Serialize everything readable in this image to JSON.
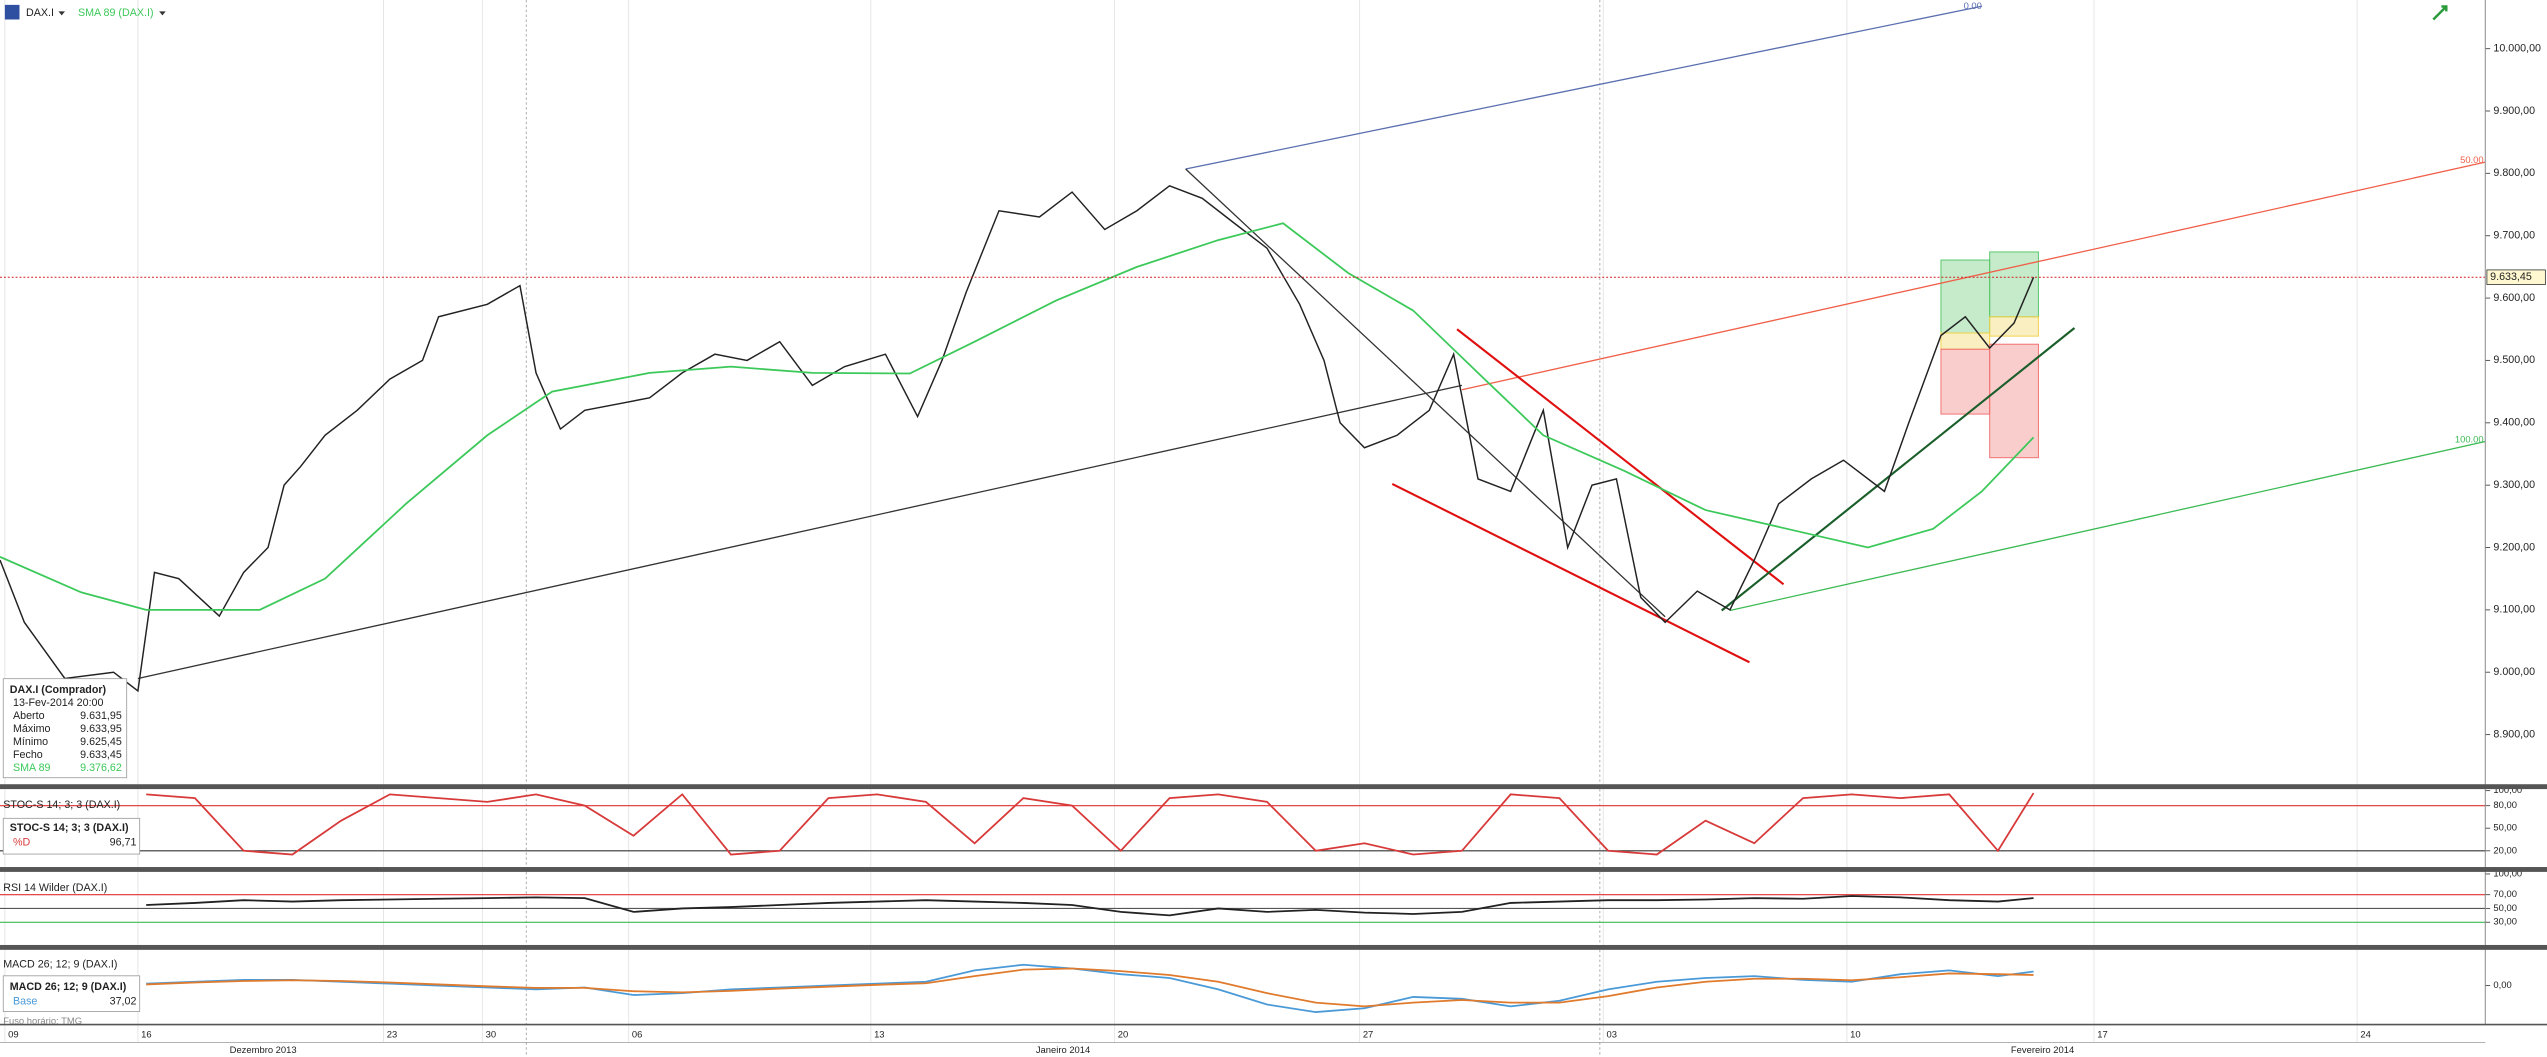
{
  "chart_data": [
    {
      "type": "line",
      "title": "DAX.I",
      "xlim": [
        0,
        51
      ],
      "xticks": [
        {
          "value": 0.1,
          "label": "09"
        },
        {
          "value": 2.83,
          "label": "16"
        },
        {
          "value": 7.87,
          "label": "23"
        },
        {
          "value": 9.9,
          "label": "30"
        },
        {
          "value": 12.9,
          "label": "06"
        },
        {
          "value": 17.87,
          "label": "13"
        },
        {
          "value": 22.87,
          "label": "20"
        },
        {
          "value": 27.9,
          "label": "27"
        },
        {
          "value": 32.9,
          "label": "03"
        },
        {
          "value": 37.9,
          "label": "10"
        },
        {
          "value": 42.97,
          "label": "17"
        },
        {
          "value": 48.37,
          "label": "24"
        }
      ],
      "x_groups": [
        {
          "label": "Dezembro 2013",
          "start": 0,
          "end": 10.8
        },
        {
          "label": "Janeiro 2014",
          "start": 10.8,
          "end": 32.83
        },
        {
          "label": "Fevereiro 2014",
          "start": 32.83,
          "end": 51
        }
      ],
      "ylim": [
        8823,
        10078
      ],
      "yticks": [
        {
          "value": 8900,
          "label": "8.900,00"
        },
        {
          "value": 9000,
          "label": "9.000,00"
        },
        {
          "value": 9100,
          "label": "9.100,00"
        },
        {
          "value": 9200,
          "label": "9.200,00"
        },
        {
          "value": 9300,
          "label": "9.300,00"
        },
        {
          "value": 9400,
          "label": "9.400,00"
        },
        {
          "value": 9500,
          "label": "9.500,00"
        },
        {
          "value": 9600,
          "label": "9.600,00"
        },
        {
          "value": 9700,
          "label": "9.700,00"
        },
        {
          "value": 9800,
          "label": "9.800,00"
        },
        {
          "value": 9900,
          "label": "9.900,00"
        },
        {
          "value": 10000,
          "label": "10.000,00"
        }
      ],
      "grid": true,
      "last_price_label": "9.633,45",
      "series": [
        {
          "name": "DAX.I",
          "color": "#222222",
          "x": [
            0,
            0.5,
            1.33,
            2.33,
            2.83,
            3.17,
            3.67,
            4.5,
            5,
            5.5,
            5.83,
            6.17,
            6.67,
            7.33,
            8,
            8.67,
            9,
            10,
            10.67,
            11,
            11.5,
            12,
            12.67,
            13.33,
            14,
            14.67,
            15.33,
            16,
            16.67,
            17.33,
            18.17,
            18.83,
            19.33,
            19.83,
            20.5,
            21.33,
            22,
            22.67,
            23.33,
            24,
            24.67,
            25.33,
            26,
            26.67,
            27.17,
            27.5,
            28,
            28.67,
            29.33,
            29.83,
            30.33,
            31,
            31.67,
            32.17,
            32.67,
            33.17,
            33.67,
            34.17,
            34.83,
            35.5,
            36,
            36.5,
            37.17,
            37.83,
            38.67,
            39.17,
            39.83,
            40.33,
            40.83,
            41.33,
            41.73
          ],
          "values": [
            9180,
            9080,
            8990,
            9000,
            8970,
            9160,
            9150,
            9090,
            9160,
            9200,
            9300,
            9330,
            9380,
            9420,
            9470,
            9500,
            9570,
            9590,
            9620,
            9480,
            9390,
            9420,
            9430,
            9440,
            9480,
            9510,
            9500,
            9530,
            9460,
            9490,
            9510,
            9410,
            9500,
            9610,
            9740,
            9730,
            9770,
            9710,
            9740,
            9780,
            9760,
            9720,
            9680,
            9590,
            9500,
            9400,
            9360,
            9380,
            9420,
            9510,
            9310,
            9290,
            9420,
            9200,
            9300,
            9310,
            9120,
            9080,
            9130,
            9100,
            9180,
            9270,
            9310,
            9340,
            9290,
            9400,
            9540,
            9570,
            9520,
            9560,
            9633.45
          ]
        },
        {
          "name": "SMA 89 (DAX.I)",
          "color": "#3cc95a",
          "x": [
            0,
            1.67,
            3,
            5.33,
            6.67,
            8.33,
            10,
            11.33,
            13.33,
            15,
            16.67,
            18.67,
            20,
            21.67,
            23.33,
            25,
            26.33,
            27.67,
            29,
            30.33,
            31.67,
            33.33,
            35,
            36.67,
            38.33,
            39.67,
            40.67,
            41.73
          ],
          "values": [
            9185,
            9128,
            9100,
            9100,
            9150,
            9270,
            9380,
            9450,
            9480,
            9490,
            9480,
            9479,
            9530,
            9596,
            9650,
            9693,
            9720,
            9640,
            9580,
            9480,
            9380,
            9323,
            9260,
            9230,
            9200,
            9230,
            9290,
            9376.62
          ]
        }
      ],
      "lines": [
        {
          "x": [
            2.83,
            30
          ],
          "y": [
            8990,
            9460
          ],
          "color": "#333333"
        },
        {
          "x": [
            24.33,
            40.67
          ],
          "y": [
            9807,
            10068
          ],
          "color": "#5a6fb0",
          "label": "0.00"
        },
        {
          "x": [
            30,
            51
          ],
          "y": [
            9453,
            9818
          ],
          "color": "#f0604a",
          "label": "50.00"
        },
        {
          "x": [
            35.5,
            51
          ],
          "y": [
            9099,
            9370
          ],
          "color": "#3cba54",
          "label": "100.00"
        },
        {
          "x": [
            24.33,
            34.17
          ],
          "y": [
            9807,
            9089
          ],
          "color": "#333333"
        },
        {
          "x": [
            29.9,
            36.6
          ],
          "y": [
            9550,
            9141
          ],
          "color": "#e01010"
        },
        {
          "x": [
            28.57,
            35.9
          ],
          "y": [
            9302,
            9016
          ],
          "color": "#e01010"
        },
        {
          "x": [
            35.33,
            42.57
          ],
          "y": [
            9099,
            9552
          ],
          "color": "#1a5e2a"
        }
      ],
      "boxes": [
        {
          "x": [
            39.83,
            40.83
          ],
          "y": [
            9544,
            9661
          ],
          "color": "#58c76a"
        },
        {
          "x": [
            39.83,
            40.83
          ],
          "y": [
            9518,
            9544
          ],
          "color": "#f2d04a"
        },
        {
          "x": [
            39.83,
            40.83
          ],
          "y": [
            9414,
            9518
          ],
          "color": "#f07070"
        },
        {
          "x": [
            40.83,
            41.83
          ],
          "y": [
            9570,
            9674
          ],
          "color": "#58c76a"
        },
        {
          "x": [
            40.83,
            41.83
          ],
          "y": [
            9539,
            9570
          ],
          "color": "#f2d04a"
        },
        {
          "x": [
            40.83,
            41.83
          ],
          "y": [
            9344,
            9526
          ],
          "color": "#f07070"
        }
      ]
    },
    {
      "type": "line",
      "title": "STOC-S 14; 3; 3 (DAX.I)",
      "ylim": [
        2.7,
        102
      ],
      "yticks": [
        {
          "value": 100,
          "label": "100,00"
        },
        {
          "value": 80,
          "label": "80,00"
        },
        {
          "value": 50,
          "label": "50,00"
        },
        {
          "value": 20,
          "label": "20,00"
        }
      ],
      "levels": [
        {
          "value": 80,
          "color": "#e03030"
        },
        {
          "value": 20,
          "color": "#333333"
        }
      ],
      "readout_value": "96,71",
      "series": [
        {
          "name": "%D",
          "color": "#d83a3a",
          "x": [
            3,
            4,
            5,
            6,
            7,
            8,
            9,
            10,
            11,
            12,
            13,
            14,
            15,
            16,
            17,
            18,
            19,
            20,
            21,
            22,
            23,
            24,
            25,
            26,
            27,
            28,
            29,
            30,
            31,
            32,
            33,
            34,
            35,
            36,
            37,
            38,
            39,
            40,
            41,
            41.73
          ],
          "values": [
            95,
            90,
            20,
            15,
            60,
            95,
            90,
            85,
            95,
            80,
            40,
            95,
            15,
            20,
            90,
            95,
            85,
            30,
            90,
            80,
            20,
            90,
            95,
            85,
            20,
            30,
            15,
            20,
            95,
            90,
            20,
            15,
            60,
            30,
            90,
            95,
            90,
            95,
            20,
            96.71
          ]
        }
      ]
    },
    {
      "type": "line",
      "title": "RSI 14 Wilder (DAX.I)",
      "ylim": [
        1.8,
        100.6
      ],
      "yticks": [
        {
          "value": 100,
          "label": "100,00"
        },
        {
          "value": 70,
          "label": "70,00"
        },
        {
          "value": 50,
          "label": "50,00"
        },
        {
          "value": 30,
          "label": "30,00"
        }
      ],
      "levels": [
        {
          "value": 70,
          "color": "#e03030"
        },
        {
          "value": 50,
          "color": "#555555"
        },
        {
          "value": 30,
          "color": "#3cba54"
        }
      ],
      "series": [
        {
          "color": "#222222",
          "x": [
            3,
            4,
            5,
            6,
            7,
            8,
            9,
            10,
            11,
            12,
            13,
            14,
            15,
            16,
            17,
            18,
            19,
            20,
            21,
            22,
            23,
            24,
            25,
            26,
            27,
            28,
            29,
            30,
            31,
            32,
            33,
            34,
            35,
            36,
            37,
            38,
            39,
            40,
            41,
            41.73
          ],
          "values": [
            55,
            58,
            62,
            60,
            62,
            63,
            64,
            65,
            66,
            65,
            45,
            50,
            52,
            55,
            58,
            60,
            62,
            60,
            58,
            55,
            45,
            40,
            50,
            45,
            48,
            44,
            42,
            45,
            58,
            60,
            62,
            62,
            63,
            65,
            64,
            68,
            66,
            62,
            60,
            65
          ]
        }
      ]
    },
    {
      "type": "line",
      "title": "MACD 26; 12; 9 (DAX.I)",
      "ylim": [
        -90,
        90
      ],
      "yticks": [
        {
          "value": 0,
          "label": "0,00"
        }
      ],
      "readout_value": "37,02",
      "series": [
        {
          "name": "Base",
          "color": "#4a9ad8",
          "x": [
            3,
            4,
            5,
            6,
            7,
            8,
            9,
            10,
            11,
            12,
            13,
            14,
            15,
            16,
            17,
            18,
            19,
            20,
            21,
            22,
            23,
            24,
            25,
            26,
            27,
            28,
            29,
            30,
            31,
            32,
            33,
            34,
            35,
            36,
            37,
            38,
            39,
            40,
            41,
            41.73
          ],
          "values": [
            5,
            10,
            15,
            15,
            10,
            5,
            0,
            -5,
            -10,
            -5,
            -25,
            -20,
            -10,
            -5,
            0,
            5,
            10,
            40,
            55,
            45,
            30,
            20,
            -10,
            -50,
            -70,
            -60,
            -30,
            -35,
            -55,
            -40,
            -10,
            10,
            20,
            25,
            15,
            10,
            30,
            40,
            25,
            37.02
          ]
        },
        {
          "color": "#e07a2c",
          "x": [
            3,
            4,
            5,
            6,
            7,
            8,
            9,
            10,
            11,
            12,
            13,
            14,
            15,
            16,
            17,
            18,
            19,
            20,
            21,
            22,
            23,
            24,
            25,
            26,
            27,
            28,
            29,
            30,
            31,
            32,
            33,
            34,
            35,
            36,
            37,
            38,
            39,
            40,
            41,
            41.73
          ],
          "values": [
            3,
            8,
            12,
            14,
            12,
            8,
            3,
            -2,
            -6,
            -6,
            -15,
            -18,
            -14,
            -8,
            -3,
            2,
            6,
            25,
            42,
            45,
            38,
            28,
            10,
            -20,
            -45,
            -55,
            -45,
            -38,
            -45,
            -45,
            -28,
            -5,
            10,
            18,
            18,
            14,
            22,
            32,
            30,
            28
          ]
        }
      ]
    }
  ],
  "info_box": {
    "title": "DAX.I (Comprador)",
    "date": "13-Fev-2014 20:00",
    "rows": [
      [
        "Aberto",
        "9.631,95"
      ],
      [
        "Máximo",
        "9.633,95"
      ],
      [
        "Mínimo",
        "9.625,45"
      ],
      [
        "Fecho",
        "9.633,45"
      ],
      [
        "SMA 89",
        "9.376,62"
      ]
    ]
  },
  "timezone": "Fuso horário: TMG"
}
